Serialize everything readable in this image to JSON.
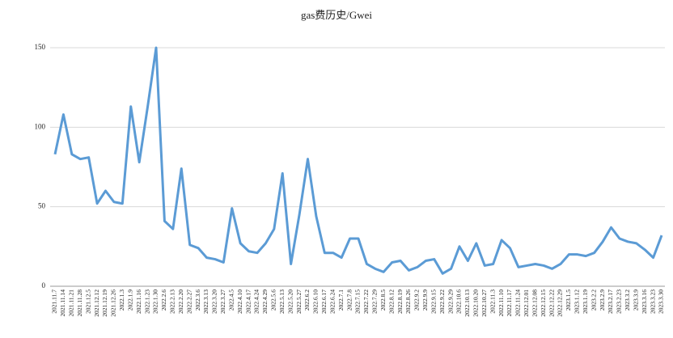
{
  "chart_data": {
    "type": "line",
    "title": "gas费历史/Gwei",
    "categories": [
      "2021.11.7",
      "2021.11.14",
      "2021.11.21",
      "2021.11.28",
      "2021.12.5",
      "2021.12.12",
      "2021.12.19",
      "2021.12.26",
      "2022.1.3",
      "2022.1.9",
      "2022.1.16",
      "2022.1.23",
      "2022.1.30",
      "2022.2.6",
      "2022.2.13",
      "2022.2.20",
      "2022.2.27",
      "2022.3.6",
      "2022.3.13",
      "2022.3.20",
      "2022.3.27",
      "2022.4.5",
      "2022.4.10",
      "2022.4.17",
      "2022.4.24",
      "2022.4.29",
      "2022.5.6",
      "2022.5.13",
      "2022.5.20",
      "2022.5.27",
      "2022.6.2",
      "2022.6.10",
      "2022.6.17",
      "2022.6.24",
      "2022.7.1",
      "2022.7.8",
      "2022.7.15",
      "2022.7.22",
      "2022.7.29",
      "2022.8.5",
      "2022.8.12",
      "2022.8.19",
      "2022.8.26",
      "2022.9.2",
      "2022.9.9",
      "2022.9.15",
      "2022.9.22",
      "2022.9.29",
      "2022.10.6",
      "2022.10.13",
      "2022.10.20",
      "2022.10.27",
      "2022.11.3",
      "2022.11.10",
      "2022.11.17",
      "2022.11.24",
      "2022.12.01",
      "2022.12.08",
      "2022.12.15",
      "2022.12.22",
      "2022.12.29",
      "2023.1.5",
      "2023.1.12",
      "2023.1.19",
      "2023.2.2",
      "2023.2.9",
      "2023.2.17",
      "2023.2.23",
      "2023.3.2",
      "2023.3.9",
      "2023.3.16",
      "2023.3.23",
      "2023.3.30"
    ],
    "series": [
      {
        "name": "gas",
        "color": "#5b9bd5",
        "values": [
          83,
          108,
          83,
          80,
          81,
          52,
          60,
          53,
          52,
          113,
          78,
          113,
          150,
          41,
          36,
          74,
          26,
          24,
          18,
          17,
          15,
          49,
          27,
          22,
          21,
          27,
          36,
          71,
          14,
          45,
          80,
          44,
          21,
          21,
          18,
          30,
          30,
          14,
          11,
          9,
          15,
          16,
          10,
          12,
          16,
          17,
          8,
          11,
          25,
          16,
          27,
          13,
          14,
          29,
          24,
          12,
          13,
          14,
          13,
          11,
          14,
          20,
          20,
          19,
          21,
          28,
          37,
          30,
          28,
          27,
          23,
          18,
          32
        ]
      }
    ],
    "ylim": [
      0,
      150
    ],
    "yticks": [
      0,
      50,
      100,
      150
    ],
    "grid": true
  }
}
